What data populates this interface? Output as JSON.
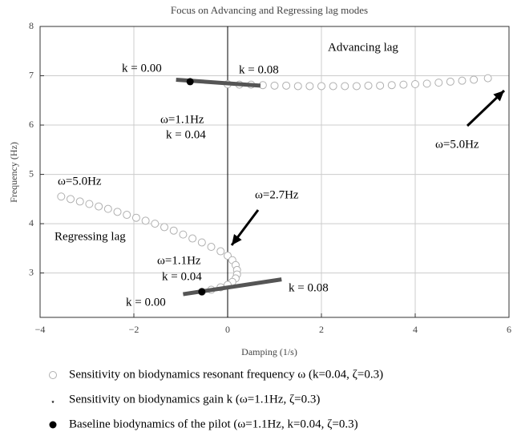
{
  "chart_data": {
    "type": "scatter",
    "title": "Focus on Advancing and Regressing lag modes",
    "x_label": "Damping (1/s)",
    "y_label": "Frequency (Hz)",
    "xlim": [
      -4,
      6
    ],
    "ylim": [
      2.1,
      8
    ],
    "xticks": [
      {
        "value": -4,
        "label": "−4"
      },
      {
        "value": -2,
        "label": "−2"
      },
      0,
      2,
      4,
      6
    ],
    "yticks": [
      3,
      4,
      5,
      6,
      7,
      8
    ],
    "grid": true,
    "series": [
      {
        "name": "Sensitivity on biodynamics resonant frequency ω (k=0.04, ζ=0.3)",
        "marker": "open-circle",
        "color": "#b0b0b0",
        "x": [
          -3.55,
          -3.35,
          -3.15,
          -2.95,
          -2.75,
          -2.55,
          -2.35,
          -2.15,
          -1.95,
          -1.75,
          -1.55,
          -1.35,
          -1.15,
          -0.95,
          -0.75,
          -0.55,
          -0.35,
          -0.15,
          0.0,
          0.1,
          0.17,
          0.2,
          0.2,
          0.17,
          0.1,
          0.0,
          -0.15,
          -0.35,
          -0.55,
          0.0,
          0.25,
          0.5,
          0.75,
          1.0,
          1.25,
          1.5,
          1.75,
          2.0,
          2.25,
          2.5,
          2.75,
          3.0,
          3.25,
          3.5,
          3.75,
          4.0,
          4.25,
          4.5,
          4.75,
          5.0,
          5.25,
          5.55
        ],
        "values": [
          4.55,
          4.5,
          4.45,
          4.4,
          4.35,
          4.3,
          4.24,
          4.18,
          4.12,
          4.06,
          4.0,
          3.93,
          3.86,
          3.78,
          3.7,
          3.62,
          3.53,
          3.44,
          3.35,
          3.26,
          3.16,
          3.06,
          2.97,
          2.89,
          2.82,
          2.76,
          2.71,
          2.66,
          2.62,
          6.83,
          6.82,
          6.82,
          6.81,
          6.8,
          6.8,
          6.79,
          6.79,
          6.79,
          6.79,
          6.79,
          6.79,
          6.8,
          6.8,
          6.81,
          6.82,
          6.83,
          6.84,
          6.86,
          6.88,
          6.9,
          6.92,
          6.95
        ]
      },
      {
        "name": "Sensitivity on biodynamics gain k (ω=1.1Hz, ζ=0.3)",
        "marker": "star",
        "color": "#555555",
        "x": [
          -1.1,
          0.7,
          null,
          -0.95,
          1.15
        ],
        "values": [
          6.92,
          6.8,
          null,
          2.57,
          2.87
        ]
      },
      {
        "name": "Baseline biodynamics of the pilot (ω=1.1Hz, k=0.04, ζ=0.3)",
        "marker": "dot",
        "color": "#000000",
        "x": [
          -0.8,
          -0.55
        ],
        "values": [
          6.88,
          2.62
        ]
      }
    ],
    "annotations": [
      "Advancing lag",
      "k = 0.00",
      "k = 0.08",
      "ω=1.1Hz",
      "k = 0.04",
      "ω=5.0Hz",
      "ω=5.0Hz",
      "ω=2.7Hz",
      "Regressing lag",
      "ω=1.1Hz",
      "k = 0.04",
      "k = 0.00",
      "k = 0.08"
    ]
  }
}
